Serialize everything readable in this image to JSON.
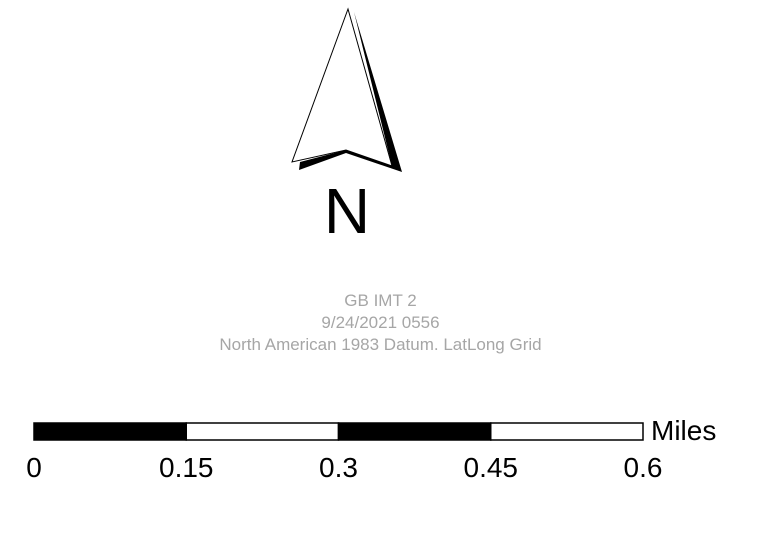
{
  "north_arrow": {
    "label": "N"
  },
  "map_info": {
    "title": "GB IMT 2",
    "date": "9/24/2021 0556",
    "datum": "North American 1983 Datum. LatLong Grid"
  },
  "scale_bar": {
    "unit_label": "Miles",
    "tick_labels": [
      "0",
      "0.15",
      "0.3",
      "0.45",
      "0.6"
    ],
    "segment_fills": [
      "black",
      "white",
      "black",
      "white"
    ],
    "colors": {
      "dark": "#000000",
      "light": "#ffffff"
    }
  },
  "colors": {
    "info_text": "#a6a6a6",
    "background": "#ffffff"
  }
}
